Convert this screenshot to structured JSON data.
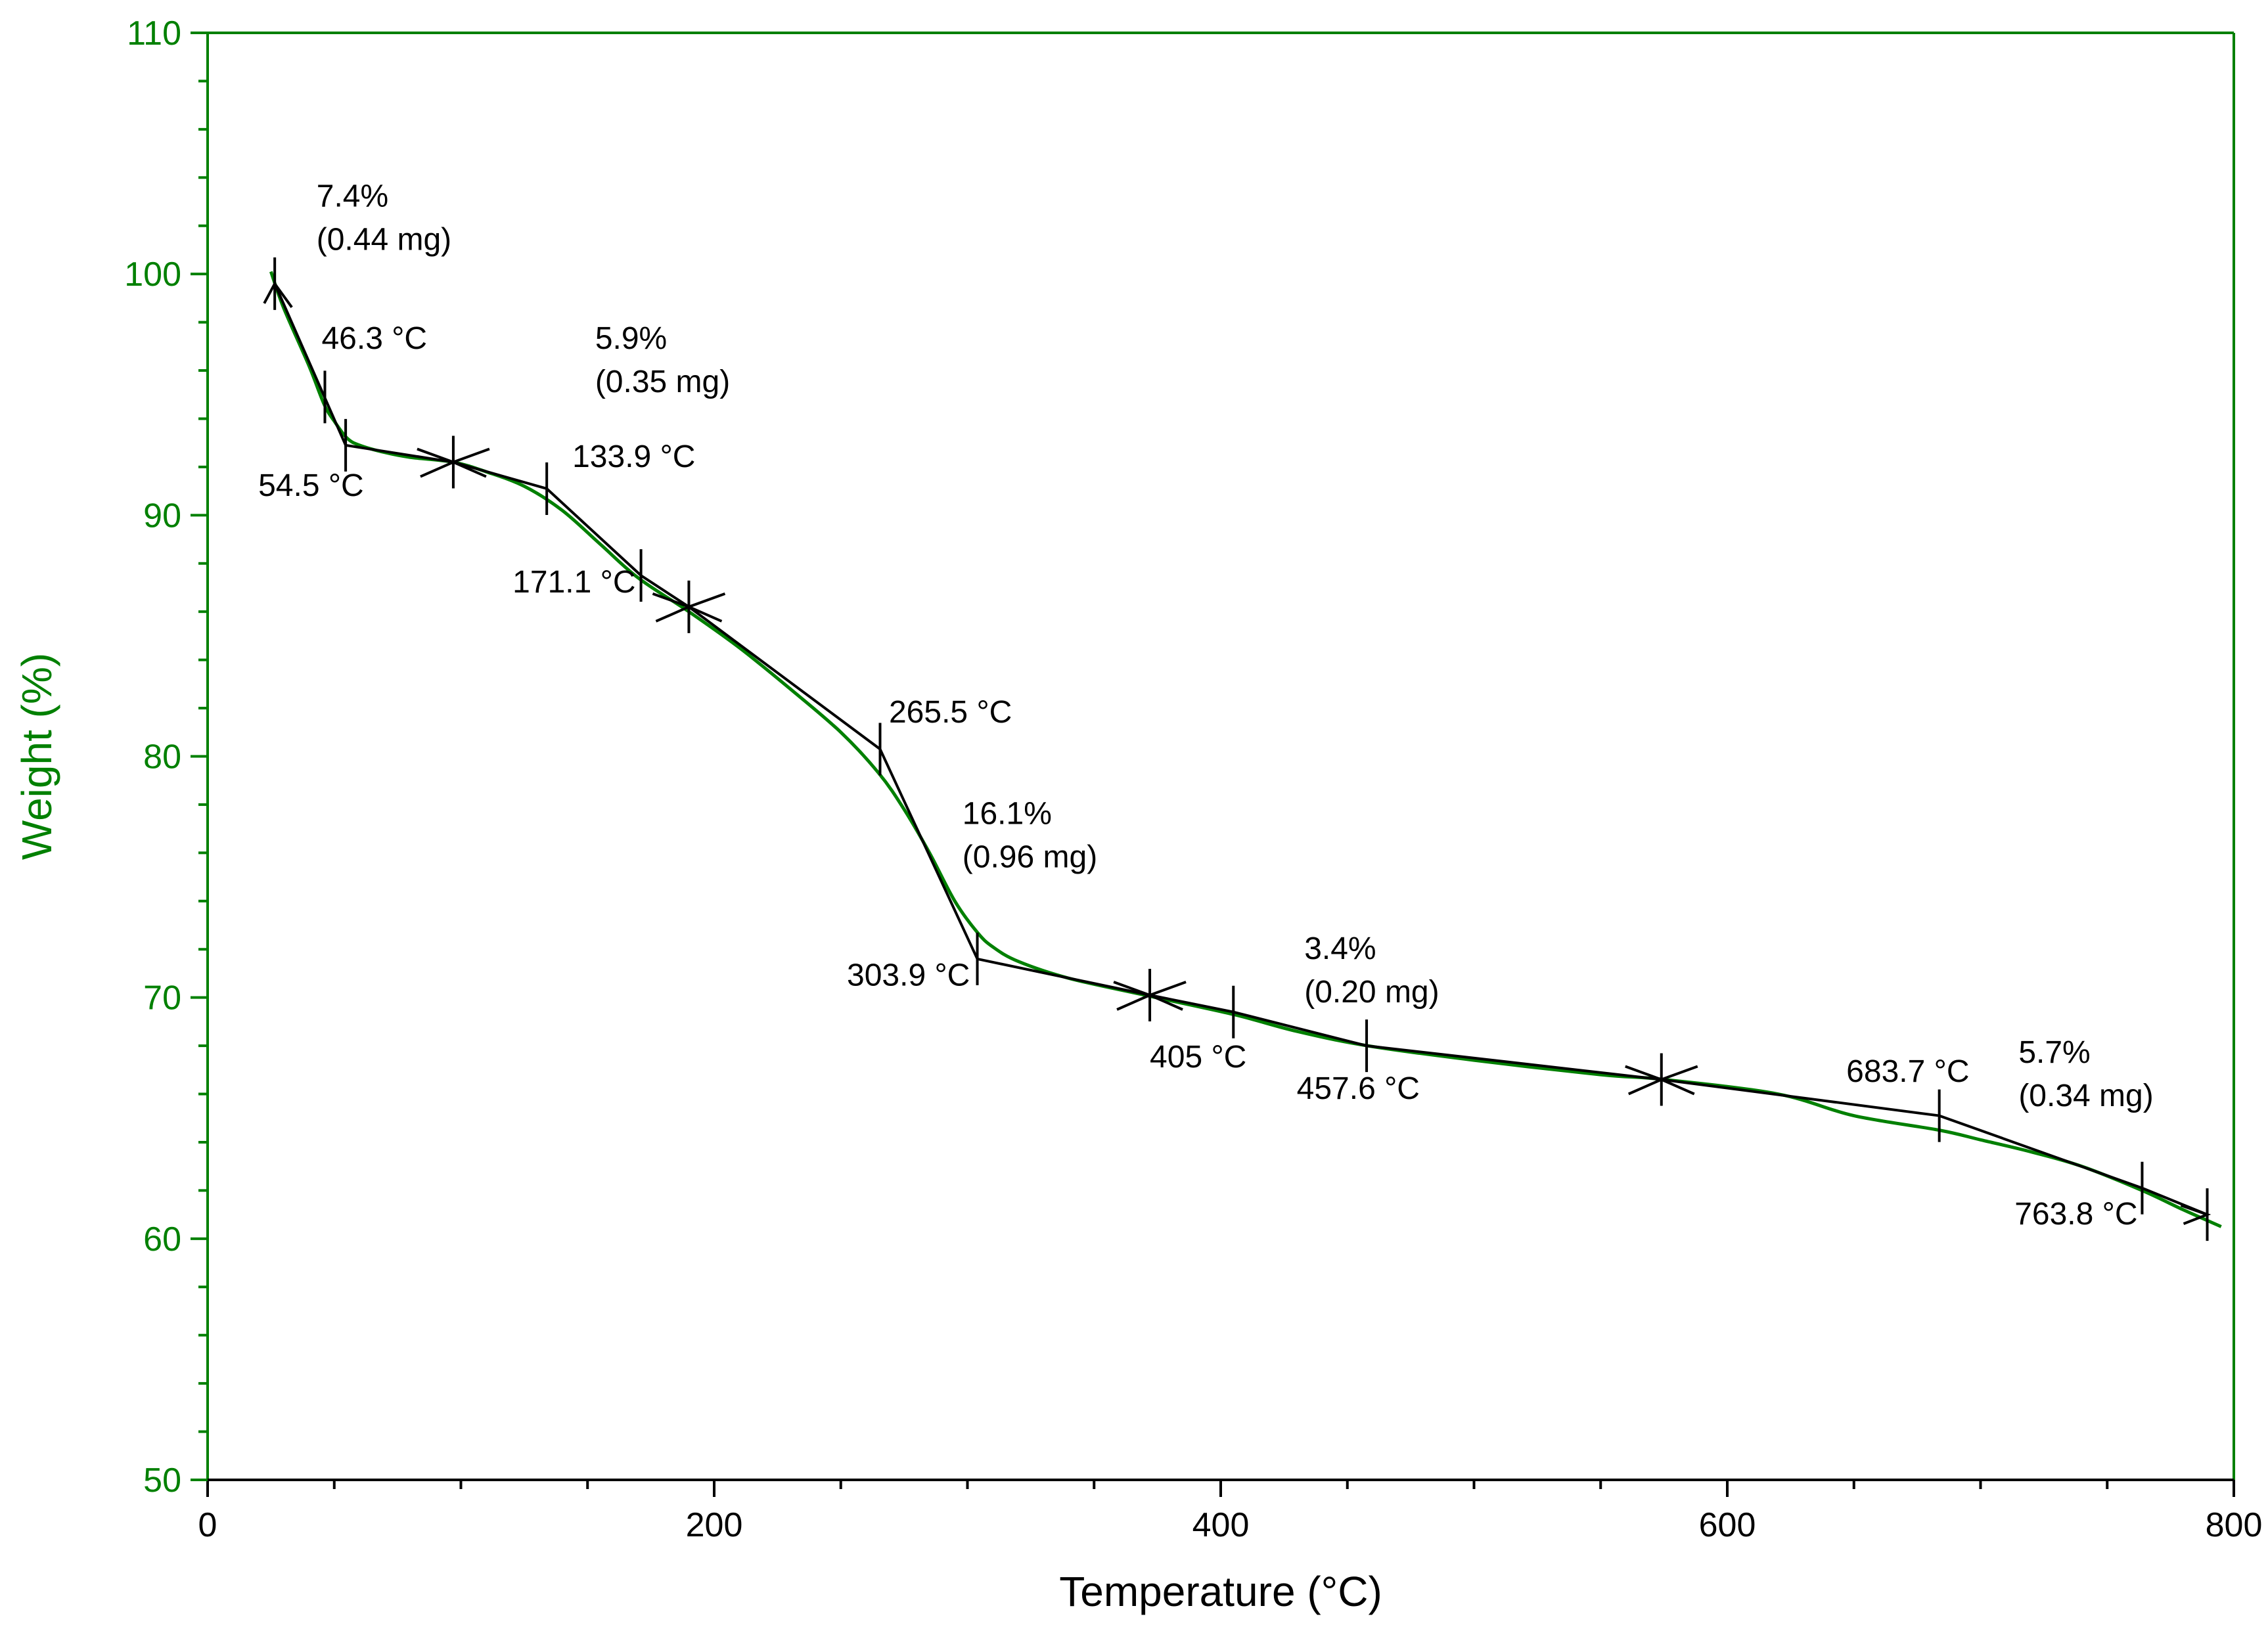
{
  "colors": {
    "weight": "#008000",
    "construction": "#000000",
    "background": "#ffffff"
  },
  "chart_data": {
    "type": "line",
    "title": "",
    "xlabel": "Temperature (°C)",
    "ylabel": "Weight (%)",
    "xlim": [
      0,
      800
    ],
    "ylim": [
      50,
      110
    ],
    "x_major_ticks": [
      0,
      200,
      400,
      600,
      800
    ],
    "x_tick_labels": [
      "0",
      "200",
      "400",
      "600",
      "800"
    ],
    "x_minor_step": 50,
    "y_major_ticks": [
      50,
      60,
      70,
      80,
      90,
      100,
      110
    ],
    "y_tick_labels": [
      "50",
      "60",
      "70",
      "80",
      "90",
      "100",
      "110"
    ],
    "y_minor_step": 2,
    "grid": false,
    "series": [
      {
        "name": "Weight",
        "color": "#008000",
        "x": [
          25,
          30,
          40,
          46,
          50,
          55,
          60,
          70,
          80,
          97,
          110,
          125,
          140,
          155,
          170,
          190,
          210,
          230,
          250,
          265,
          275,
          285,
          295,
          303.9,
          310,
          320,
          340,
          370,
          405,
          430,
          458,
          500,
          550,
          575,
          620,
          650,
          683.7,
          700,
          720,
          740,
          763.8,
          780,
          795
        ],
        "y": [
          100.1,
          98.6,
          96.2,
          94.6,
          93.9,
          93.2,
          92.9,
          92.6,
          92.4,
          92.2,
          91.8,
          91.2,
          90.2,
          88.8,
          87.4,
          86.0,
          84.5,
          82.8,
          81.0,
          79.3,
          77.8,
          76.0,
          74.0,
          72.7,
          72.1,
          71.5,
          70.8,
          70.1,
          69.3,
          68.6,
          68.0,
          67.4,
          66.8,
          66.6,
          66.0,
          65.1,
          64.5,
          64.1,
          63.6,
          63.0,
          62.0,
          61.2,
          60.5
        ]
      }
    ],
    "constructions": {
      "lines": [
        {
          "x": [
            26.5,
            54.5,
            97
          ],
          "y": [
            99.6,
            92.9,
            92.2
          ]
        },
        {
          "x": [
            97,
            133.9,
            171.1,
            190
          ],
          "y": [
            92.2,
            91.1,
            87.5,
            86.2
          ]
        },
        {
          "x": [
            190,
            265.5,
            303.9,
            372
          ],
          "y": [
            86.2,
            80.3,
            71.6,
            70.1
          ]
        },
        {
          "x": [
            372,
            405,
            457.6,
            574
          ],
          "y": [
            70.1,
            69.4,
            68.0,
            66.6
          ]
        },
        {
          "x": [
            574,
            683.7,
            763.8,
            789.5
          ],
          "y": [
            66.6,
            65.1,
            62.1,
            61.0
          ]
        }
      ],
      "ticks": [
        {
          "x": 26.5,
          "y": 99.6,
          "angle": 0
        },
        {
          "x": 46.3,
          "y": 94.9,
          "angle": 0
        },
        {
          "x": 54.5,
          "y": 92.9,
          "angle": 0
        },
        {
          "x": 97,
          "y": 92.2,
          "angle": 0
        },
        {
          "x": 133.9,
          "y": 91.1,
          "angle": 0
        },
        {
          "x": 171.1,
          "y": 87.5,
          "angle": 0
        },
        {
          "x": 190,
          "y": 86.2,
          "angle": 0
        },
        {
          "x": 265.5,
          "y": 80.3,
          "angle": 0
        },
        {
          "x": 303.9,
          "y": 71.6,
          "angle": 0
        },
        {
          "x": 372,
          "y": 70.1,
          "angle": 0
        },
        {
          "x": 405,
          "y": 69.4,
          "angle": 0
        },
        {
          "x": 457.6,
          "y": 68.0,
          "angle": 0
        },
        {
          "x": 574,
          "y": 66.6,
          "angle": 0
        },
        {
          "x": 683.7,
          "y": 65.1,
          "angle": 0
        },
        {
          "x": 763.8,
          "y": 62.1,
          "angle": 0
        },
        {
          "x": 789.5,
          "y": 61.0,
          "angle": 0
        }
      ],
      "arrows": [
        {
          "x": 26.5,
          "y": 99.6,
          "dir": "up"
        },
        {
          "x": 97,
          "y": 92.2,
          "dir": "both"
        },
        {
          "x": 190,
          "y": 86.2,
          "dir": "both"
        },
        {
          "x": 372,
          "y": 70.1,
          "dir": "both"
        },
        {
          "x": 574,
          "y": 66.6,
          "dir": "both"
        },
        {
          "x": 789.5,
          "y": 61.0,
          "dir": "right"
        }
      ]
    },
    "annotations": [
      {
        "text": "7.4%",
        "x": 43,
        "y": 102.8,
        "anchor": "start"
      },
      {
        "text": "(0.44 mg)",
        "x": 43,
        "y": 101.0,
        "anchor": "start"
      },
      {
        "text": "46.3 °C",
        "x": 45,
        "y": 96.9,
        "anchor": "start"
      },
      {
        "text": "54.5  °C",
        "x": 20,
        "y": 90.8,
        "anchor": "start"
      },
      {
        "text": "5.9%",
        "x": 153,
        "y": 96.9,
        "anchor": "start"
      },
      {
        "text": "(0.35 mg)",
        "x": 153,
        "y": 95.1,
        "anchor": "start"
      },
      {
        "text": "133.9 °C",
        "x": 144,
        "y": 92.0,
        "anchor": "start"
      },
      {
        "text": "171.1 °C",
        "x": 169,
        "y": 86.8,
        "anchor": "end"
      },
      {
        "text": "265.5 °C",
        "x": 269,
        "y": 81.4,
        "anchor": "start"
      },
      {
        "text": "16.1%",
        "x": 298,
        "y": 77.2,
        "anchor": "start"
      },
      {
        "text": "(0.96 mg)",
        "x": 298,
        "y": 75.4,
        "anchor": "start"
      },
      {
        "text": "303.9 °C",
        "x": 301,
        "y": 70.5,
        "anchor": "end"
      },
      {
        "text": "3.4%",
        "x": 433,
        "y": 71.6,
        "anchor": "start"
      },
      {
        "text": "(0.20 mg)",
        "x": 433,
        "y": 69.8,
        "anchor": "start"
      },
      {
        "text": "405 °C",
        "x": 372,
        "y": 67.1,
        "anchor": "start"
      },
      {
        "text": "457.6 °C",
        "x": 430,
        "y": 65.8,
        "anchor": "start"
      },
      {
        "text": "683.7 °C",
        "x": 647,
        "y": 66.5,
        "anchor": "start"
      },
      {
        "text": "5.7%",
        "x": 715,
        "y": 67.3,
        "anchor": "start"
      },
      {
        "text": "(0.34 mg)",
        "x": 715,
        "y": 65.5,
        "anchor": "start"
      },
      {
        "text": "763.8 °C",
        "x": 762,
        "y": 60.6,
        "anchor": "end"
      }
    ]
  }
}
